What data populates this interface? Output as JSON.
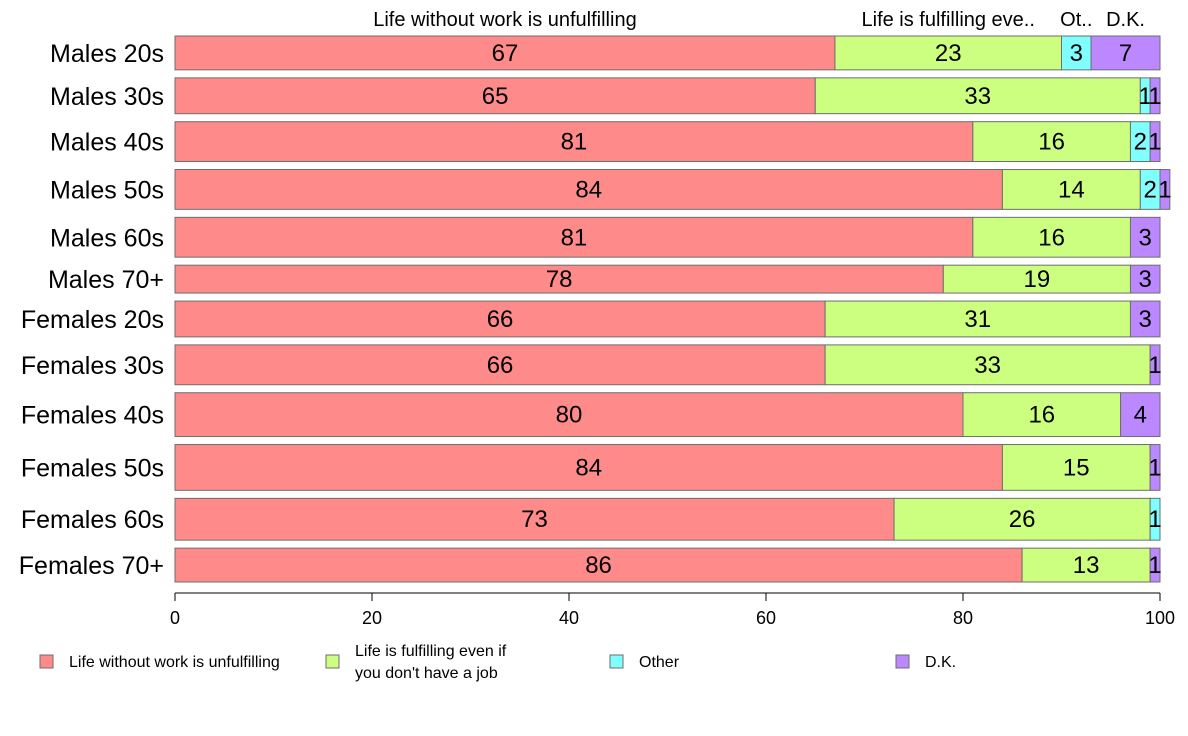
{
  "chart_data": {
    "type": "bar",
    "orientation": "horizontal",
    "stacked": true,
    "categories": [
      "Males 20s",
      "Males 30s",
      "Males 40s",
      "Males 50s",
      "Males 60s",
      "Males 70+",
      "Females 20s",
      "Females 30s",
      "Females 40s",
      "Females 50s",
      "Females 60s",
      "Females 70+"
    ],
    "relative_widths": [
      34,
      36,
      40,
      40,
      40,
      28,
      36,
      40,
      44,
      46,
      42,
      34
    ],
    "series": [
      {
        "name": "Life without work is unfulfilling",
        "color": "#ff8a8a",
        "values": [
          67,
          65,
          81,
          84,
          81,
          78,
          66,
          66,
          80,
          84,
          73,
          86
        ]
      },
      {
        "name": "Life is fulfilling even if you don't have a job",
        "color": "#ccff80",
        "values": [
          23,
          33,
          16,
          14,
          16,
          19,
          31,
          33,
          16,
          15,
          26,
          13
        ]
      },
      {
        "name": "Other",
        "color": "#80ffff",
        "values": [
          3,
          1,
          2,
          2,
          0,
          0,
          0,
          0,
          0,
          0,
          1,
          0
        ]
      },
      {
        "name": "D.K.",
        "color": "#bb88ff",
        "values": [
          7,
          1,
          1,
          1,
          3,
          3,
          3,
          1,
          4,
          1,
          0,
          1
        ]
      }
    ],
    "top_labels": [
      "Life without work is unfulfilling",
      "Life is fulfilling eve..",
      "Ot..",
      "D.K."
    ],
    "legend": {
      "placement": "bottom",
      "items": [
        {
          "lines": [
            "Life without work is unfulfilling"
          ],
          "color": "#ff8a8a"
        },
        {
          "lines": [
            "Life is fulfilling even if",
            "you don't have a job"
          ],
          "color": "#ccff80"
        },
        {
          "lines": [
            "Other"
          ],
          "color": "#80ffff"
        },
        {
          "lines": [
            "D.K."
          ],
          "color": "#bb88ff"
        }
      ]
    },
    "xlim": [
      0,
      100
    ],
    "xticks": [
      0,
      20,
      40,
      60,
      80,
      100
    ],
    "grid": false,
    "xlabel": "",
    "ylabel": ""
  }
}
